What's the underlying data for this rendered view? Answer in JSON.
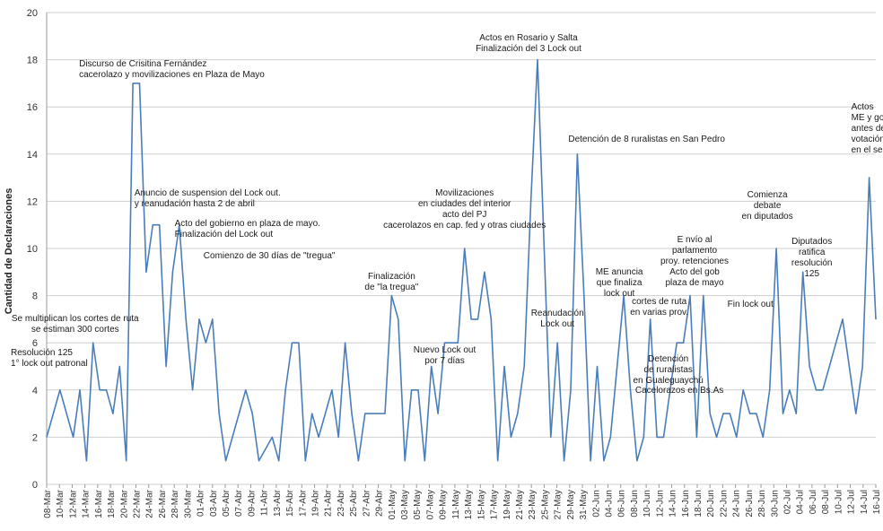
{
  "chart_data": {
    "type": "line",
    "ylabel": "Cantidad de Declaraciones",
    "ylim": [
      0,
      20
    ],
    "ytick_step": 2,
    "grid": true,
    "line_color": "#4a7ebb",
    "x_tick_labels": [
      "08-Mar",
      "10-Mar",
      "12-Mar",
      "14-Mar",
      "16-Mar",
      "18-Mar",
      "20-Mar",
      "22-Mar",
      "24-Mar",
      "26-Mar",
      "28-Mar",
      "30-Mar",
      "01-Abr",
      "03-Abr",
      "05-Abr",
      "07-Abr",
      "09-Abr",
      "11-Abr",
      "13-Abr",
      "15-Abr",
      "17-Abr",
      "19-Abr",
      "21-Abr",
      "23-Abr",
      "25-Abr",
      "27-Abr",
      "29-Abr",
      "01-May",
      "03-May",
      "05-May",
      "07-May",
      "09-May",
      "11-May",
      "13-May",
      "15-May",
      "17-May",
      "19-May",
      "21-May",
      "23-May",
      "25-May",
      "27-May",
      "29-May",
      "31-May",
      "02-Jun",
      "04-Jun",
      "06-Jun",
      "08-Jun",
      "10-Jun",
      "12-Jun",
      "14-Jun",
      "16-Jun",
      "18-Jun",
      "20-Jun",
      "22-Jun",
      "24-Jun",
      "26-Jun",
      "28-Jun",
      "30-Jun",
      "02-Jul",
      "04-Jul",
      "06-Jul",
      "08-Jul",
      "10-Jul",
      "12-Jul",
      "14-Jul",
      "16-Jul"
    ],
    "series": [
      {
        "values": [
          2,
          3,
          4,
          3,
          2,
          4,
          1,
          6,
          4,
          4,
          3,
          5,
          1,
          17,
          17,
          9,
          11,
          11,
          5,
          9,
          11,
          7,
          4,
          7,
          6,
          7,
          3,
          1,
          2,
          3,
          4,
          3,
          1,
          1.5,
          2,
          1,
          4,
          6,
          6,
          1,
          3,
          2,
          3,
          4,
          2,
          6,
          3,
          1,
          3,
          3,
          3,
          3,
          8,
          7,
          1,
          4,
          4,
          1,
          5,
          3,
          6,
          6,
          6,
          10,
          7,
          7,
          9,
          7,
          1,
          5,
          2,
          3,
          5,
          12,
          18,
          10,
          2,
          6,
          1,
          4,
          14,
          8,
          1,
          5,
          1,
          2,
          5,
          8,
          4,
          1,
          2,
          7,
          2,
          2,
          4,
          6,
          6,
          8,
          2,
          8,
          3,
          2,
          3,
          3,
          2,
          4,
          3,
          3,
          2,
          4,
          10,
          3,
          4,
          3,
          9,
          5,
          4,
          4,
          5,
          6,
          7,
          5,
          3,
          5,
          13,
          7
        ]
      }
    ],
    "annotations": [
      {
        "value_index": 0,
        "lines": [
          "Resolución 125",
          "1° lock out patronal"
        ]
      },
      {
        "value_index": 7,
        "lines": [
          "Se multiplican los cortes de ruta",
          "se estiman 300 cortes"
        ]
      },
      {
        "value_index": 13,
        "lines": [
          "Discurso de Crisitina Fernández",
          "cacerolazo y  movilizaciones en Plaza de Mayo"
        ]
      },
      {
        "value_index": 20,
        "lines": [
          "Anuncio  de suspension del Lock out.",
          "y reanudación hasta 2 de abril"
        ]
      },
      {
        "value_index": 22,
        "lines": [
          "Acto del gobierno en plaza de mayo.",
          "Finalización del Lock out"
        ]
      },
      {
        "value_index": 25,
        "lines": [
          "Comienzo de 30 días de \"tregua\""
        ]
      },
      {
        "value_index": 52,
        "lines": [
          "Finalización",
          "de \"la tregua\""
        ]
      },
      {
        "value_index": 63,
        "lines": [
          "Movilizaciones",
          "en ciudades del interior",
          "acto del PJ",
          "cacerolazos en cap. fed y otras ciudades"
        ]
      },
      {
        "value_index": 60,
        "lines": [
          "Nuevo Lock out",
          "por 7 días"
        ]
      },
      {
        "value_index": 74,
        "lines": [
          "Actos en Rosario y Salta",
          "Finalización del 3 Lock out"
        ]
      },
      {
        "value_index": 77,
        "lines": [
          "Reanudación",
          "Lock out"
        ]
      },
      {
        "value_index": 80,
        "lines": [
          "Detención de 8 ruralistas en San Pedro"
        ]
      },
      {
        "value_index": 87,
        "lines": [
          "ME anuncia",
          "que finaliza",
          "lock out"
        ]
      },
      {
        "value_index": 91,
        "lines": [
          "cortes de ruta",
          "en varias prov."
        ]
      },
      {
        "value_index": 91,
        "lines": [
          "Detención",
          "de ruralistas",
          "en Gualeguaychú"
        ]
      },
      {
        "value_index": 92,
        "lines": [
          "Cacelorazos en Bs.As"
        ]
      },
      {
        "value_index": 97,
        "lines": [
          "E nvío al",
          "parlamento",
          "proy. retenciones",
          "Acto del gob",
          "plaza de mayo"
        ]
      },
      {
        "value_index": 100,
        "lines": [
          "Fin lock out"
        ]
      },
      {
        "value_index": 110,
        "lines": [
          "Comienza",
          "debate",
          "en diputados"
        ]
      },
      {
        "value_index": 114,
        "lines": [
          "Diputados",
          "ratifica",
          "resolución",
          "125"
        ]
      },
      {
        "value_index": 124,
        "lines": [
          "Actos",
          "ME y gobierno",
          "antes de",
          "votación",
          "en el senado"
        ]
      }
    ]
  }
}
